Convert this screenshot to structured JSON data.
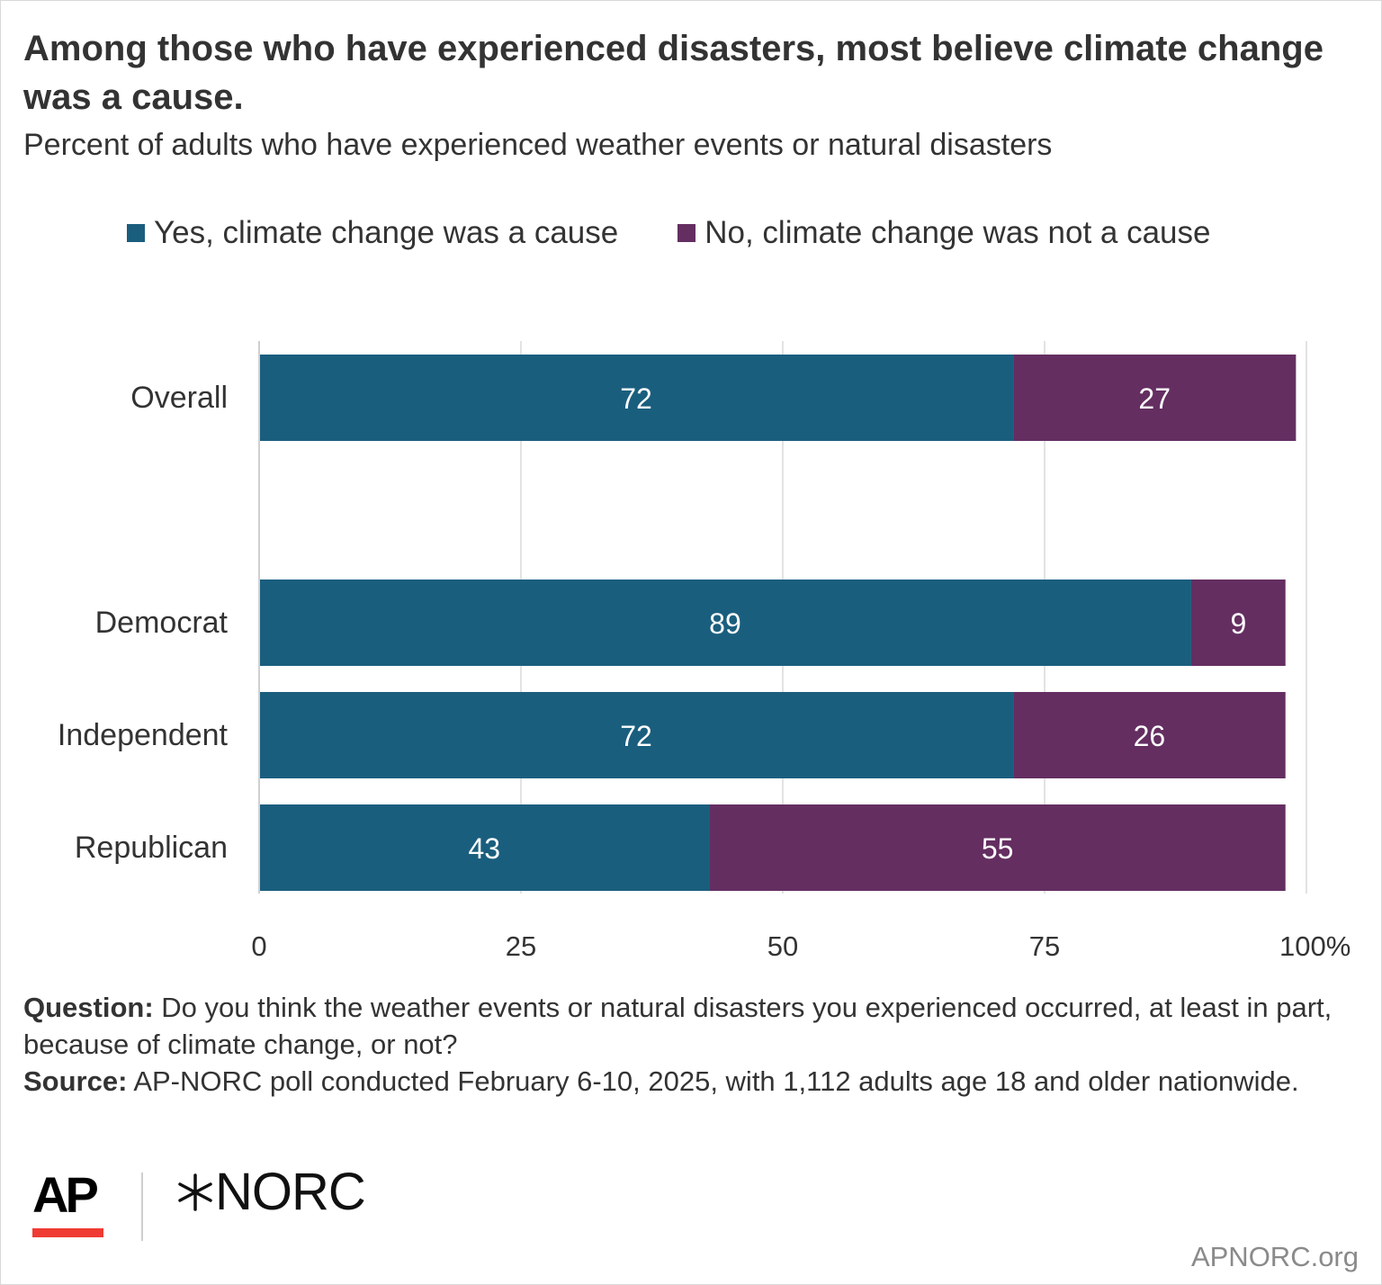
{
  "title": "Among those who have experienced disasters, most believe climate change was a cause.",
  "subtitle": "Percent of adults who have experienced weather events or natural disasters",
  "legend": [
    {
      "label": "Yes, climate change was a cause",
      "color": "#1a5e7e"
    },
    {
      "label": "No, climate change was not a cause",
      "color": "#642e61"
    }
  ],
  "chart_data": {
    "type": "bar",
    "orientation": "horizontal",
    "stacked": true,
    "categories": [
      "Overall",
      "Democrat",
      "Independent",
      "Republican"
    ],
    "series": [
      {
        "name": "Yes, climate change was a cause",
        "values": [
          72,
          89,
          72,
          43
        ],
        "color": "#1a5e7e"
      },
      {
        "name": "No, climate change was not a cause",
        "values": [
          27,
          9,
          26,
          55
        ],
        "color": "#642e61"
      }
    ],
    "xlim": [
      0,
      100
    ],
    "xticks": [
      "0",
      "25",
      "50",
      "75",
      "100%"
    ],
    "grid": true,
    "legend_position": "top"
  },
  "footnote": {
    "question_label": "Question:",
    "question_text": "Do you think the weather events or natural disasters you experienced occurred, at least in part, because of climate change, or not?",
    "source_label": "Source:",
    "source_text": "AP-NORC poll conducted February 6-10, 2025, with 1,112 adults age 18 and older nationwide."
  },
  "logos": {
    "ap": "AP",
    "ap_bar_color": "#ef3b33",
    "norc": "NORC",
    "norc_mark": "star-burst-icon"
  },
  "credit": "APNORC.org"
}
